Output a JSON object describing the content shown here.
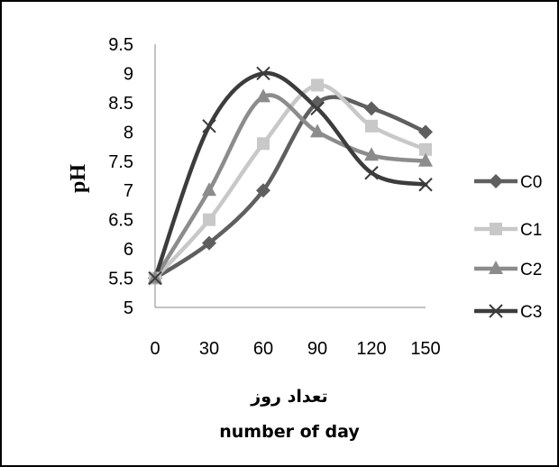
{
  "chart_data": {
    "type": "line",
    "x": [
      0,
      30,
      60,
      90,
      120,
      150
    ],
    "xticks": [
      "0",
      "30",
      "60",
      "90",
      "120",
      "150"
    ],
    "yticks": [
      "5",
      "5.5",
      "6",
      "6.5",
      "7",
      "7.5",
      "8",
      "8.5",
      "9",
      "9.5"
    ],
    "ylim": [
      5,
      9.5
    ],
    "xlim": [
      0,
      150
    ],
    "ylabel": "pH",
    "xlabel_fa": "تعداد روز",
    "xlabel_en": "number of day",
    "smooth": true,
    "grid": false,
    "legend_position": "right",
    "series": [
      {
        "name": "C0",
        "legend_label": "C0",
        "marker": "diamond",
        "color": "#5f5f5f",
        "values": [
          5.5,
          6.1,
          7.0,
          8.5,
          8.4,
          8.0
        ]
      },
      {
        "name": "C1",
        "legend_label": "C1",
        "marker": "square",
        "color": "#c8c8c8",
        "values": [
          5.5,
          6.5,
          7.8,
          8.8,
          8.1,
          7.7
        ]
      },
      {
        "name": "C2",
        "legend_label": "C2",
        "marker": "triangle",
        "color": "#8c8c8c",
        "values": [
          5.5,
          7.0,
          8.6,
          8.0,
          7.6,
          7.5
        ]
      },
      {
        "name": "C3",
        "legend_label": "C3",
        "marker": "x",
        "color": "#3c3c3c",
        "values": [
          5.5,
          8.1,
          9.0,
          8.4,
          7.3,
          7.1
        ]
      }
    ]
  }
}
